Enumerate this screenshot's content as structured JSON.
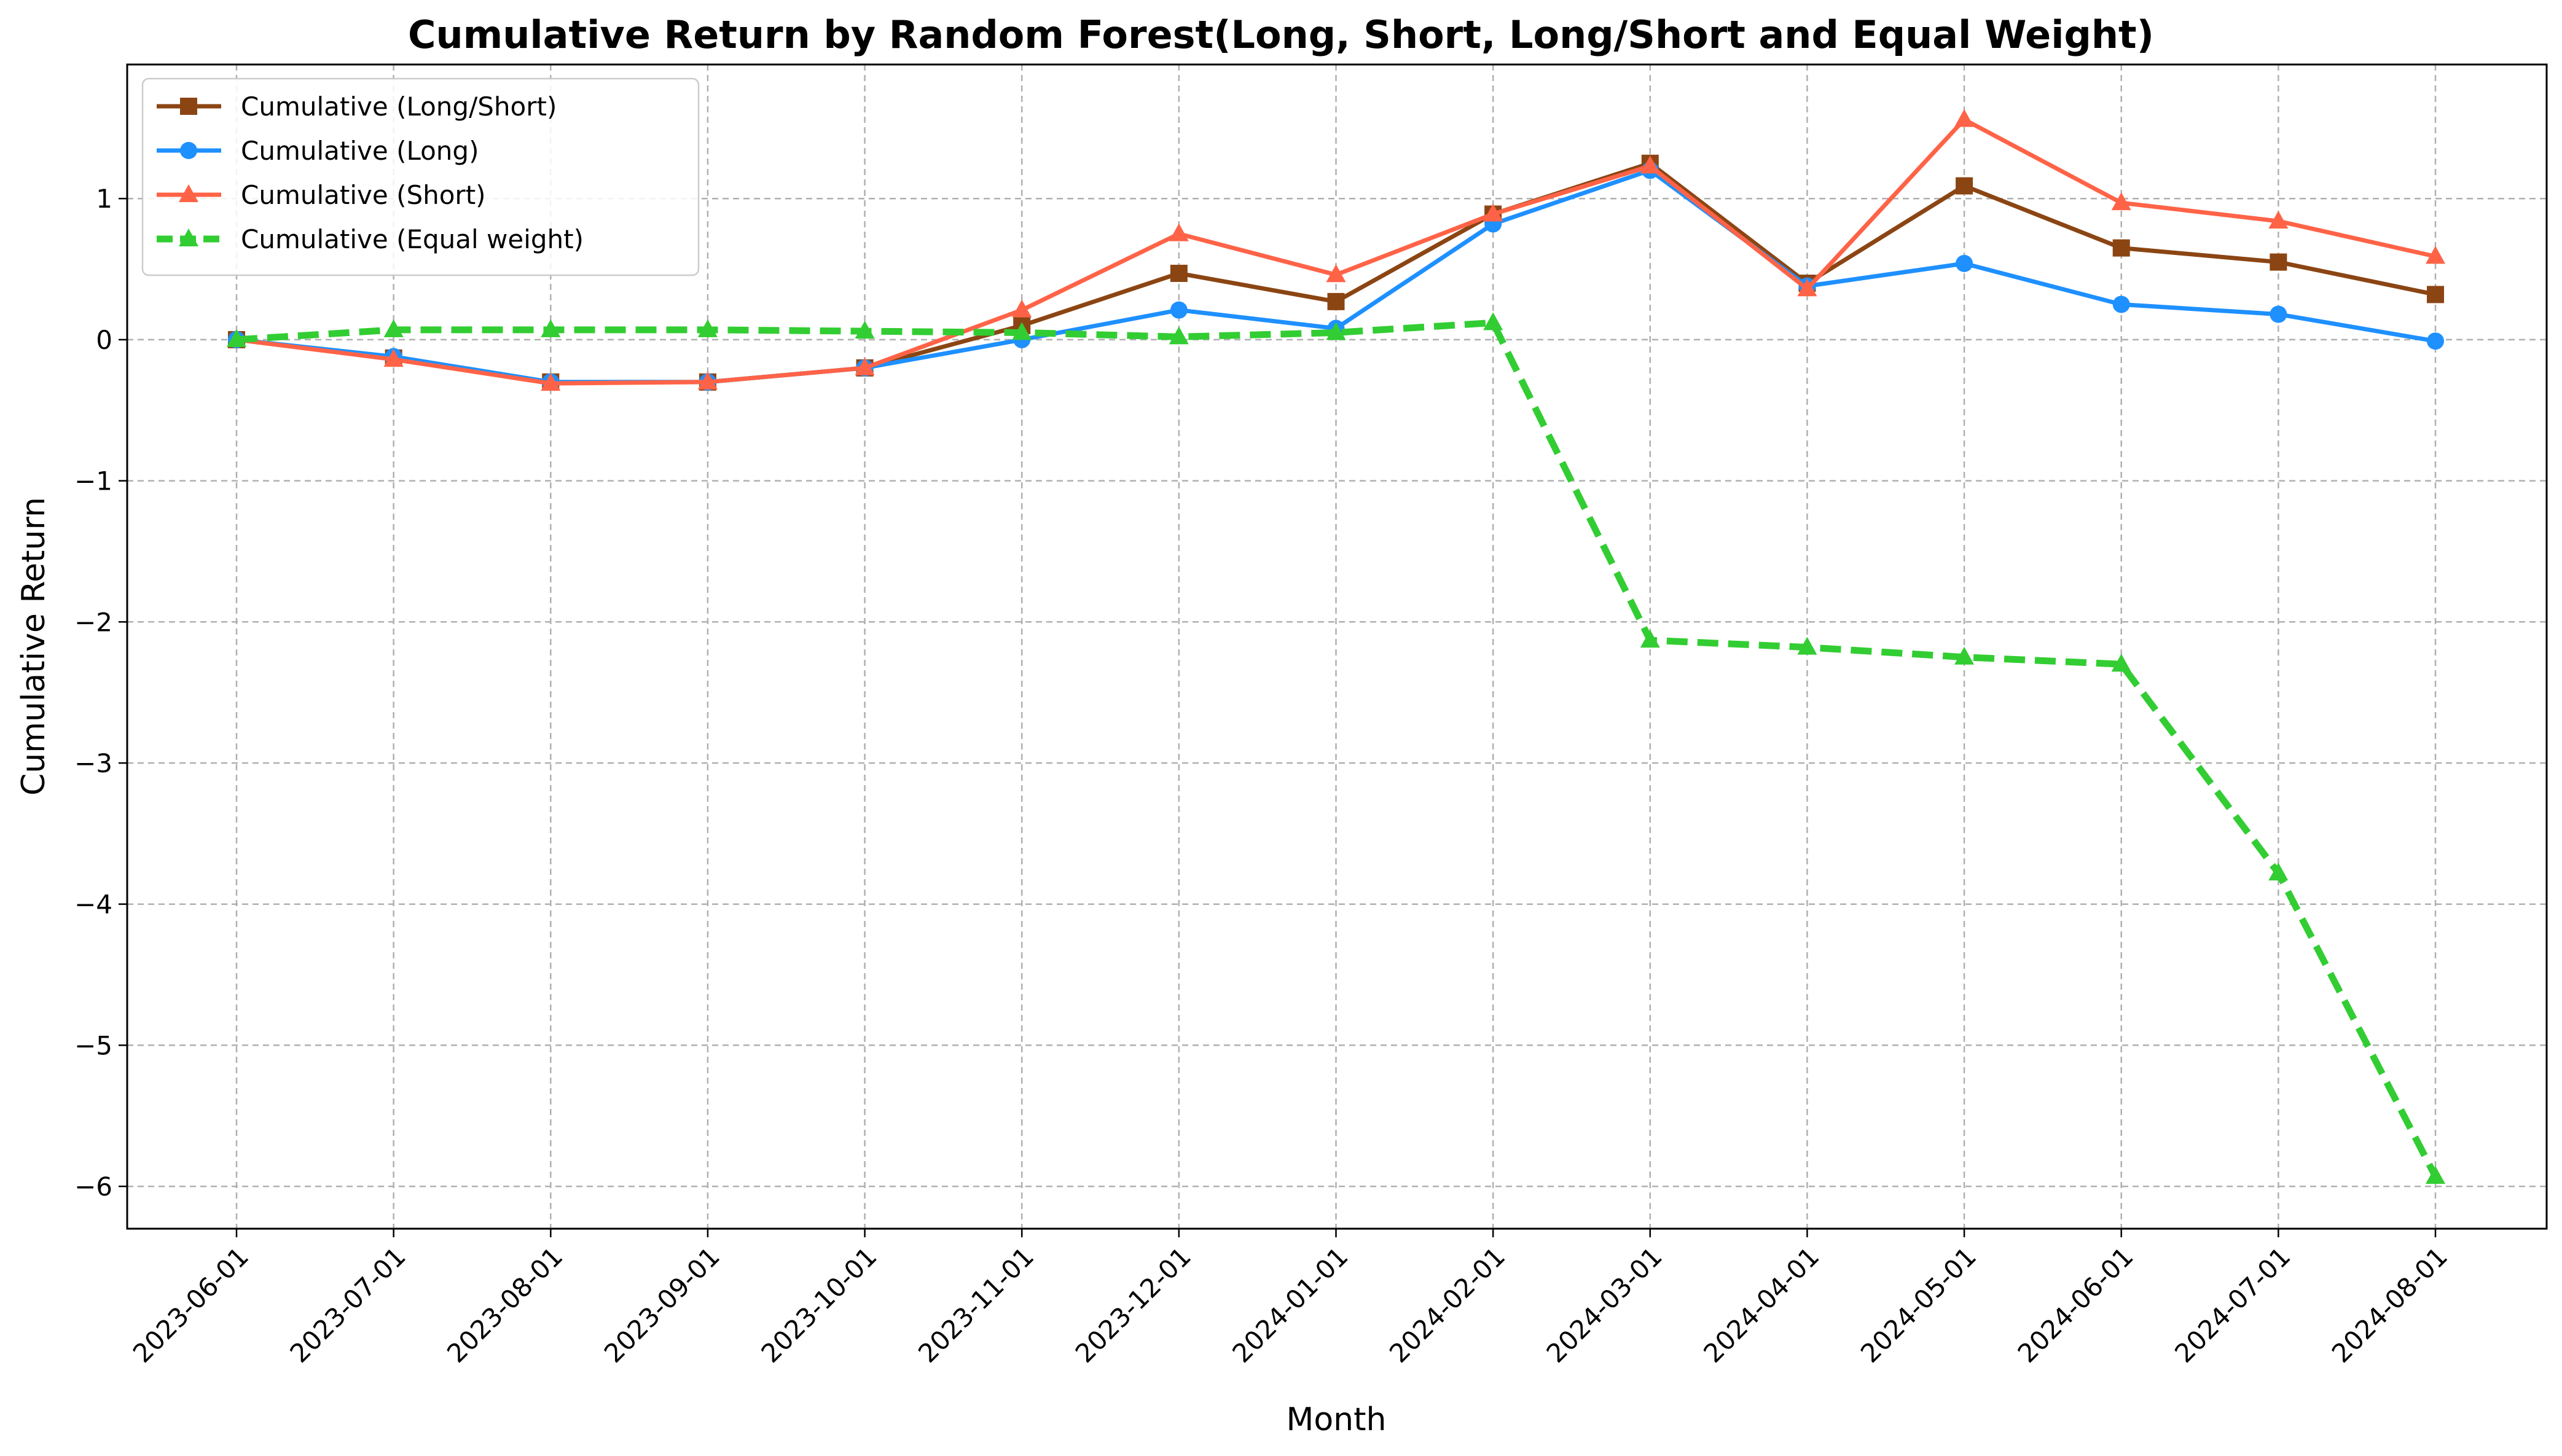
{
  "chart_data": {
    "type": "line",
    "title": "Cumulative Return by Random Forest(Long, Short, Long/Short and Equal Weight)",
    "xlabel": "Month",
    "ylabel": "Cumulative Return",
    "x": [
      "2023-06-01",
      "2023-07-01",
      "2023-08-01",
      "2023-09-01",
      "2023-10-01",
      "2023-11-01",
      "2023-12-01",
      "2024-01-01",
      "2024-02-01",
      "2024-03-01",
      "2024-04-01",
      "2024-05-01",
      "2024-06-01",
      "2024-07-01",
      "2024-08-01"
    ],
    "yticks": [
      1,
      0,
      -1,
      -2,
      -3,
      -4,
      -5,
      -6
    ],
    "ylim": [
      -6.3,
      1.95
    ],
    "grid": true,
    "legend_position": "top-left",
    "series": [
      {
        "name": "Cumulative (Long/Short)",
        "color": "#8B4513",
        "marker": "square",
        "dashed": false,
        "values": [
          0.0,
          -0.13,
          -0.3,
          -0.3,
          -0.2,
          0.1,
          0.47,
          0.27,
          0.89,
          1.25,
          0.4,
          1.09,
          0.65,
          0.55,
          0.32
        ]
      },
      {
        "name": "Cumulative (Long)",
        "color": "#1E90FF",
        "marker": "circle",
        "dashed": false,
        "values": [
          0.0,
          -0.12,
          -0.3,
          -0.3,
          -0.2,
          0.0,
          0.21,
          0.08,
          0.82,
          1.2,
          0.38,
          0.54,
          0.25,
          0.18,
          -0.01
        ]
      },
      {
        "name": "Cumulative (Short)",
        "color": "#FF6347",
        "marker": "triangle",
        "dashed": false,
        "values": [
          0.0,
          -0.14,
          -0.31,
          -0.3,
          -0.2,
          0.21,
          0.75,
          0.46,
          0.89,
          1.23,
          0.36,
          1.56,
          0.97,
          0.84,
          0.59
        ]
      },
      {
        "name": "Cumulative (Equal weight)",
        "color": "#32CD32",
        "marker": "triangle",
        "dashed": true,
        "values": [
          0.0,
          0.07,
          0.07,
          0.07,
          0.06,
          0.05,
          0.02,
          0.05,
          0.12,
          -2.13,
          -2.18,
          -2.25,
          -2.3,
          -3.78,
          -5.93
        ]
      }
    ]
  }
}
